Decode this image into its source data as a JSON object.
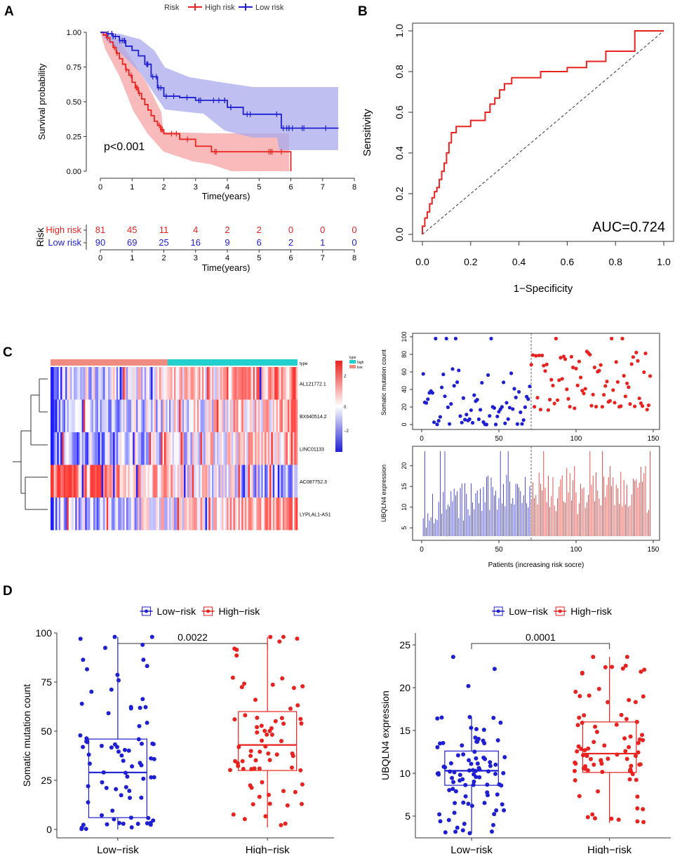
{
  "panel_labels": {
    "a": "A",
    "b": "B",
    "c": "C",
    "d": "D"
  },
  "colors": {
    "high": "#e8231f",
    "low": "#1f1fd2",
    "high_fill": "#f6a9a9",
    "low_fill": "#a9a9ee",
    "teal": "#22d0d0",
    "salmon": "#f08b82"
  },
  "chart_data": [
    {
      "id": "A_km",
      "type": "line",
      "title": "",
      "legend_title": "Risk",
      "legend": [
        "High risk",
        "Low risk"
      ],
      "xlabel": "Time(years)",
      "ylabel": "Survival probability",
      "xlim": [
        0,
        8
      ],
      "ylim": [
        0,
        1
      ],
      "xticks": [
        "0",
        "1",
        "2",
        "3",
        "4",
        "5",
        "6",
        "7",
        "8"
      ],
      "yticks": [
        "0.00",
        "0.25",
        "0.50",
        "0.75",
        "1.00"
      ],
      "annotation": "p<0.001",
      "series": [
        {
          "name": "High risk",
          "x": [
            0,
            0.1,
            0.2,
            0.3,
            0.4,
            0.5,
            0.6,
            0.7,
            0.8,
            0.9,
            1.0,
            1.1,
            1.2,
            1.3,
            1.4,
            1.5,
            1.6,
            1.7,
            1.8,
            1.9,
            2.0,
            2.5,
            3.0,
            3.5,
            4.0,
            5.0,
            5.5,
            5.9,
            6.0
          ],
          "y": [
            1.0,
            0.98,
            0.96,
            0.93,
            0.89,
            0.85,
            0.81,
            0.77,
            0.73,
            0.69,
            0.64,
            0.6,
            0.56,
            0.52,
            0.48,
            0.44,
            0.4,
            0.36,
            0.33,
            0.3,
            0.27,
            0.23,
            0.18,
            0.14,
            0.14,
            0.14,
            0.14,
            0.14,
            0.0
          ]
        },
        {
          "name": "Low risk",
          "x": [
            0,
            0.2,
            0.4,
            0.6,
            0.8,
            1.0,
            1.2,
            1.4,
            1.6,
            1.8,
            2.0,
            2.5,
            3.0,
            3.5,
            4.0,
            4.5,
            5.0,
            5.7,
            6.0,
            7.0,
            7.5
          ],
          "y": [
            1.0,
            0.99,
            0.97,
            0.94,
            0.9,
            0.87,
            0.83,
            0.77,
            0.68,
            0.6,
            0.54,
            0.53,
            0.51,
            0.51,
            0.46,
            0.41,
            0.41,
            0.31,
            0.31,
            0.31,
            0.31
          ]
        }
      ]
    },
    {
      "id": "A_table",
      "type": "table",
      "title": "Risk",
      "xlabel": "Time(years)",
      "xticks": [
        "0",
        "1",
        "2",
        "3",
        "4",
        "5",
        "6",
        "7",
        "8"
      ],
      "rows": [
        {
          "label": "High risk",
          "values": [
            "81",
            "45",
            "11",
            "4",
            "2",
            "2",
            "0",
            "0",
            "0"
          ]
        },
        {
          "label": "Low risk",
          "values": [
            "90",
            "69",
            "25",
            "16",
            "9",
            "6",
            "2",
            "1",
            "0"
          ]
        }
      ]
    },
    {
      "id": "B_roc",
      "type": "line",
      "xlabel": "1−Specificity",
      "ylabel": "Sensitivity",
      "xlim": [
        0,
        1
      ],
      "ylim": [
        0,
        1
      ],
      "xticks": [
        "0.0",
        "0.2",
        "0.4",
        "0.6",
        "0.8",
        "1.0"
      ],
      "yticks": [
        "0.0",
        "0.2",
        "0.4",
        "0.6",
        "0.8",
        "1.0"
      ],
      "annotation": "AUC=0.724",
      "x": [
        0,
        0,
        0.01,
        0.01,
        0.02,
        0.02,
        0.03,
        0.03,
        0.04,
        0.04,
        0.05,
        0.05,
        0.06,
        0.06,
        0.07,
        0.07,
        0.08,
        0.08,
        0.09,
        0.09,
        0.1,
        0.1,
        0.11,
        0.11,
        0.12,
        0.12,
        0.14,
        0.14,
        0.2,
        0.2,
        0.26,
        0.26,
        0.28,
        0.28,
        0.3,
        0.3,
        0.32,
        0.32,
        0.34,
        0.34,
        0.37,
        0.37,
        0.49,
        0.49,
        0.6,
        0.6,
        0.68,
        0.68,
        0.76,
        0.76,
        0.88,
        0.88,
        1.0
      ],
      "y": [
        0,
        0.04,
        0.04,
        0.08,
        0.08,
        0.11,
        0.11,
        0.15,
        0.15,
        0.18,
        0.18,
        0.21,
        0.21,
        0.23,
        0.23,
        0.27,
        0.27,
        0.31,
        0.31,
        0.35,
        0.35,
        0.4,
        0.4,
        0.45,
        0.45,
        0.5,
        0.5,
        0.53,
        0.53,
        0.56,
        0.56,
        0.6,
        0.6,
        0.64,
        0.64,
        0.67,
        0.67,
        0.71,
        0.71,
        0.74,
        0.74,
        0.77,
        0.77,
        0.8,
        0.8,
        0.82,
        0.82,
        0.85,
        0.85,
        0.9,
        0.9,
        1.0,
        1.0
      ]
    },
    {
      "id": "C_heatmap",
      "type": "heatmap",
      "rows": [
        "AL121772.1",
        "BX640514.2",
        "LINC01133",
        "AC087752.3",
        "LYPLAL1-AS1"
      ],
      "annotation_label": "type",
      "legend_title": "type",
      "legend": [
        "high",
        "low"
      ],
      "scale_ticks": [
        "2",
        "0",
        "−2"
      ]
    },
    {
      "id": "C_scatter",
      "type": "scatter",
      "ylabel": "Somatic mutation count",
      "xlim": [
        0,
        150
      ],
      "ylim": [
        0,
        100
      ],
      "xticks": [
        "0",
        "50",
        "100",
        "150"
      ],
      "yticks": [
        "0",
        "20",
        "40",
        "60",
        "80",
        "100"
      ],
      "cutoff": 70
    },
    {
      "id": "C_bars",
      "type": "bar",
      "ylabel": "UBQLN4 expression",
      "xlabel": "Patients (increasing risk socre)",
      "xlim": [
        0,
        150
      ],
      "ylim": [
        3,
        24
      ],
      "xticks": [
        "0",
        "50",
        "100",
        "150"
      ],
      "yticks": [
        "5",
        "10",
        "15",
        "20"
      ],
      "cutoff": 70
    },
    {
      "id": "D_left",
      "type": "scatter",
      "legend": [
        "Low−risk",
        "High−risk"
      ],
      "categories": [
        "Low−risk",
        "High−risk"
      ],
      "ylabel": "Somatic mutation count",
      "ylim": [
        0,
        100
      ],
      "yticks": [
        "0",
        "25",
        "50",
        "75",
        "100"
      ],
      "pvalue": "0.0022",
      "boxes": [
        {
          "name": "Low−risk",
          "min": 0,
          "q1": 6,
          "median": 29,
          "q3": 46,
          "max": 98
        },
        {
          "name": "High−risk",
          "min": 1,
          "q1": 30,
          "median": 43,
          "q3": 60,
          "max": 98
        }
      ]
    },
    {
      "id": "D_right",
      "type": "scatter",
      "legend": [
        "Low−risk",
        "High−risk"
      ],
      "categories": [
        "Low−risk",
        "High−risk"
      ],
      "ylabel": "UBQLN4 expression",
      "ylim": [
        2.5,
        25
      ],
      "yticks": [
        "5",
        "10",
        "15",
        "20",
        "25"
      ],
      "pvalue": "0.0001",
      "boxes": [
        {
          "name": "Low−risk",
          "min": 3,
          "q1": 8.6,
          "median": 10.3,
          "q3": 12.6,
          "max": 16.6
        },
        {
          "name": "High−risk",
          "min": 4.2,
          "q1": 10.1,
          "median": 12.3,
          "q3": 16.0,
          "max": 23.6
        }
      ]
    }
  ]
}
